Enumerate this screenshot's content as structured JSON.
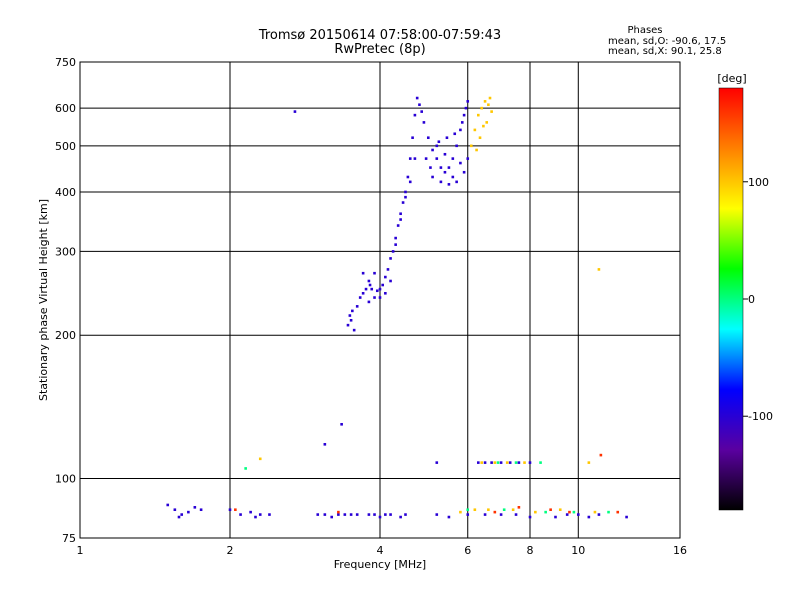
{
  "chart_data": {
    "type": "scatter",
    "title": "Tromsø 20150614 07:58:00-07:59:43",
    "subtitle": "RwPretec (8p)",
    "xlabel": "Frequency [MHz]",
    "ylabel": "Stationary phase Virtual Height [km]",
    "xscale": "log",
    "yscale": "log",
    "xlim": [
      1,
      16
    ],
    "ylim": [
      75,
      750
    ],
    "xticks": [
      {
        "value": 1,
        "label": "1"
      },
      {
        "value": 2,
        "label": "2"
      },
      {
        "value": 4,
        "label": "4"
      },
      {
        "value": 6,
        "label": "6"
      },
      {
        "value": 8,
        "label": "8"
      },
      {
        "value": 10,
        "label": "10"
      },
      {
        "value": 16,
        "label": "16"
      }
    ],
    "yticks": [
      {
        "value": 75,
        "label": "75"
      },
      {
        "value": 100,
        "label": "100"
      },
      {
        "value": 200,
        "label": "200"
      },
      {
        "value": 300,
        "label": "300"
      },
      {
        "value": 400,
        "label": "400"
      },
      {
        "value": 500,
        "label": "500"
      },
      {
        "value": 600,
        "label": "600"
      },
      {
        "value": 750,
        "label": "750"
      }
    ],
    "grid": true,
    "legend": {
      "heading": "Phases",
      "line1": "mean, sd,O: -90.6, 17.5",
      "line2": "mean, sd,X:  90.1, 25.8",
      "position": "top-right"
    },
    "colorbar": {
      "label": "[deg]",
      "range": [
        -180,
        180
      ],
      "ticks": [
        {
          "value": 100,
          "label": "100"
        },
        {
          "value": 0,
          "label": "0"
        },
        {
          "value": -100,
          "label": "-100"
        }
      ],
      "colors": [
        "#000000",
        "#5a00a0",
        "#0000ff",
        "#00ffff",
        "#00ff00",
        "#ffff00",
        "#ff8000",
        "#ff0000"
      ]
    },
    "series": [
      {
        "phase_deg": -100,
        "points": [
          [
            3.45,
            210
          ],
          [
            3.48,
            220
          ],
          [
            3.5,
            215
          ],
          [
            3.52,
            225
          ],
          [
            3.55,
            205
          ],
          [
            3.6,
            230
          ],
          [
            3.65,
            240
          ],
          [
            3.7,
            245
          ],
          [
            3.75,
            250
          ],
          [
            3.8,
            260
          ],
          [
            3.82,
            255
          ],
          [
            3.85,
            250
          ],
          [
            3.9,
            240
          ],
          [
            3.95,
            248
          ],
          [
            4.0,
            250
          ],
          [
            4.05,
            255
          ],
          [
            4.1,
            265
          ],
          [
            4.15,
            275
          ],
          [
            4.2,
            290
          ],
          [
            4.25,
            300
          ],
          [
            4.3,
            320
          ],
          [
            4.35,
            340
          ],
          [
            4.4,
            360
          ],
          [
            4.45,
            380
          ],
          [
            4.5,
            400
          ],
          [
            4.55,
            430
          ],
          [
            4.6,
            470
          ],
          [
            4.65,
            520
          ],
          [
            4.7,
            580
          ],
          [
            4.75,
            630
          ],
          [
            4.8,
            610
          ],
          [
            4.85,
            590
          ],
          [
            4.9,
            560
          ],
          [
            5.0,
            520
          ],
          [
            5.1,
            490
          ],
          [
            5.2,
            470
          ],
          [
            5.3,
            450
          ],
          [
            5.4,
            440
          ],
          [
            5.5,
            450
          ],
          [
            5.6,
            470
          ],
          [
            5.7,
            500
          ],
          [
            5.8,
            540
          ],
          [
            5.9,
            580
          ],
          [
            6.0,
            620
          ],
          [
            5.2,
            500
          ],
          [
            5.4,
            480
          ],
          [
            5.6,
            430
          ],
          [
            5.8,
            460
          ],
          [
            5.1,
            430
          ],
          [
            5.3,
            420
          ],
          [
            5.5,
            415
          ],
          [
            5.7,
            420
          ],
          [
            5.9,
            440
          ],
          [
            6.0,
            470
          ],
          [
            4.95,
            470
          ],
          [
            5.05,
            450
          ],
          [
            3.9,
            270
          ],
          [
            4.0,
            240
          ],
          [
            4.1,
            245
          ],
          [
            4.2,
            260
          ],
          [
            3.7,
            270
          ],
          [
            3.8,
            235
          ],
          [
            4.3,
            310
          ],
          [
            4.4,
            350
          ],
          [
            4.5,
            390
          ],
          [
            4.6,
            420
          ],
          [
            4.7,
            470
          ],
          [
            5.25,
            510
          ],
          [
            5.45,
            520
          ],
          [
            5.65,
            530
          ],
          [
            5.85,
            560
          ],
          [
            5.95,
            600
          ],
          [
            2.7,
            590
          ],
          [
            3.1,
            118
          ],
          [
            3.35,
            130
          ],
          [
            1.5,
            88
          ],
          [
            1.55,
            86
          ],
          [
            1.6,
            84
          ],
          [
            1.65,
            85
          ],
          [
            1.7,
            87
          ],
          [
            1.75,
            86
          ],
          [
            1.58,
            83
          ],
          [
            2.0,
            86
          ],
          [
            2.1,
            84
          ],
          [
            2.2,
            85
          ],
          [
            2.25,
            83
          ],
          [
            2.3,
            84
          ],
          [
            2.4,
            84
          ],
          [
            3.0,
            84
          ],
          [
            3.1,
            84
          ],
          [
            3.2,
            83
          ],
          [
            3.3,
            84
          ],
          [
            3.4,
            84
          ],
          [
            3.5,
            84
          ],
          [
            3.6,
            84
          ],
          [
            3.8,
            84
          ],
          [
            3.9,
            84
          ],
          [
            4.0,
            83
          ],
          [
            4.1,
            84
          ],
          [
            4.2,
            84
          ],
          [
            4.4,
            83
          ],
          [
            4.5,
            84
          ],
          [
            5.2,
            84
          ],
          [
            5.5,
            83
          ],
          [
            6.0,
            84
          ],
          [
            6.5,
            84
          ],
          [
            7.0,
            84
          ],
          [
            7.5,
            84
          ],
          [
            8.0,
            83
          ],
          [
            9.0,
            83
          ],
          [
            9.5,
            84
          ],
          [
            10.0,
            84
          ],
          [
            10.5,
            83
          ],
          [
            11.0,
            84
          ],
          [
            12.5,
            83
          ],
          [
            6.3,
            108
          ],
          [
            6.5,
            108
          ],
          [
            6.7,
            108
          ],
          [
            7.0,
            108
          ],
          [
            7.3,
            108
          ],
          [
            7.6,
            108
          ],
          [
            8.0,
            108
          ],
          [
            5.2,
            108
          ]
        ]
      },
      {
        "phase_deg": 100,
        "points": [
          [
            6.1,
            500
          ],
          [
            6.2,
            540
          ],
          [
            6.3,
            580
          ],
          [
            6.4,
            600
          ],
          [
            6.5,
            620
          ],
          [
            6.6,
            610
          ],
          [
            6.7,
            590
          ],
          [
            6.55,
            560
          ],
          [
            6.35,
            520
          ],
          [
            6.25,
            490
          ],
          [
            6.45,
            550
          ],
          [
            6.65,
            630
          ],
          [
            2.3,
            110
          ],
          [
            10.5,
            108
          ],
          [
            11.0,
            275
          ],
          [
            6.4,
            108
          ],
          [
            6.8,
            108
          ],
          [
            7.2,
            108
          ],
          [
            7.8,
            108
          ],
          [
            5.8,
            85
          ],
          [
            6.2,
            86
          ],
          [
            6.6,
            86
          ],
          [
            7.4,
            86
          ],
          [
            8.2,
            85
          ],
          [
            9.2,
            86
          ],
          [
            10.8,
            85
          ]
        ]
      },
      {
        "phase_deg": 0,
        "points": [
          [
            2.15,
            105
          ],
          [
            6.9,
            108
          ],
          [
            7.5,
            108
          ],
          [
            8.4,
            108
          ],
          [
            7.1,
            86
          ],
          [
            8.6,
            85
          ],
          [
            9.8,
            85
          ],
          [
            11.5,
            85
          ],
          [
            6.0,
            86
          ]
        ]
      },
      {
        "phase_deg": 160,
        "points": [
          [
            11.1,
            112
          ],
          [
            6.8,
            85
          ],
          [
            7.6,
            87
          ],
          [
            8.8,
            86
          ],
          [
            9.6,
            85
          ],
          [
            12.0,
            85
          ],
          [
            2.05,
            86
          ],
          [
            3.3,
            85
          ]
        ]
      }
    ]
  }
}
